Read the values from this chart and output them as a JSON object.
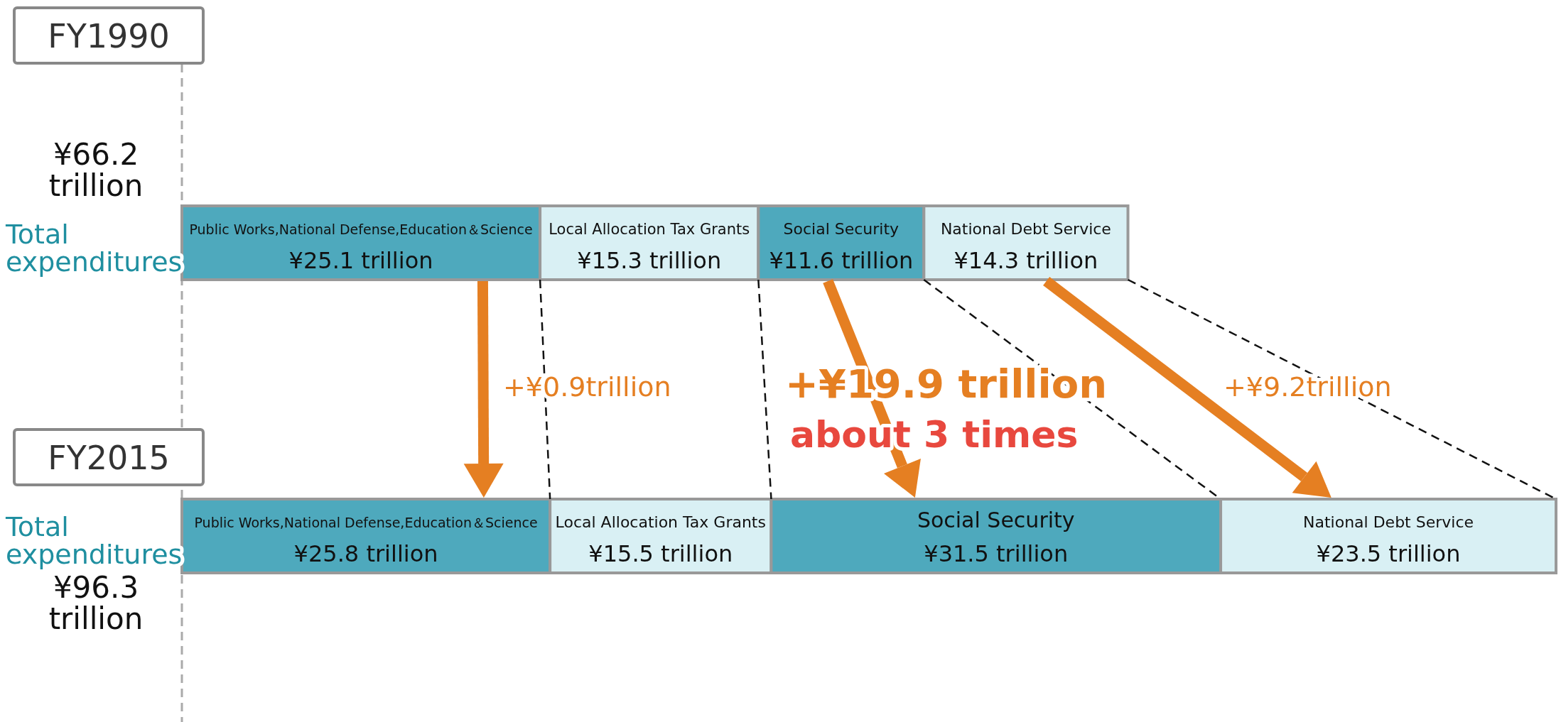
{
  "chart_data": {
    "type": "bar",
    "orientation": "horizontal",
    "stacked": true,
    "categories": [
      "FY1990",
      "FY2015"
    ],
    "xlim": [
      0,
      96.3
    ],
    "series": [
      {
        "name": "Public Works,National Defense,Education＆Science",
        "color": "#4ea9bd",
        "values": [
          25.1,
          25.8
        ],
        "value_labels": [
          "¥25.1 trillion",
          "¥25.8 trillion"
        ]
      },
      {
        "name": "Local Allocation Tax Grants",
        "color": "#d9f0f4",
        "values": [
          15.3,
          15.5
        ],
        "value_labels": [
          "¥15.3 trillion",
          "¥15.5 trillion"
        ]
      },
      {
        "name": "Social Security",
        "color": "#4ea9bd",
        "values": [
          11.6,
          31.5
        ],
        "value_labels": [
          "¥11.6 trillion",
          "¥31.5 trillion"
        ]
      },
      {
        "name": "National Debt Service",
        "color": "#d9f0f4",
        "values": [
          14.3,
          23.5
        ],
        "value_labels": [
          "¥14.3 trillion",
          "¥23.5 trillion"
        ]
      }
    ],
    "totals": [
      "¥66.2 trillion",
      "¥96.3 trillion"
    ],
    "annotations": [
      "Total expenditures",
      "Total expenditures",
      "+¥0.9trillion",
      "+¥19.9 trillion",
      "about 3 times",
      "+¥9.2trillion"
    ]
  }
}
